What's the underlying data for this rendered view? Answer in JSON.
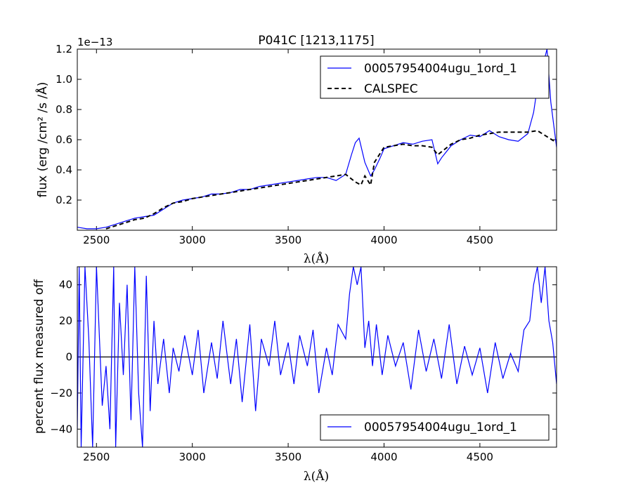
{
  "chart_data": [
    {
      "type": "line",
      "title": "P041C [1213,1175]",
      "xlabel": "λ(Å)",
      "ylabel": "flux (erg /cm² /s /Å)",
      "y_offset_label": "1e−13",
      "xlim": [
        2400,
        4900
      ],
      "ylim": [
        0.0,
        1.2
      ],
      "xticks": [
        2500,
        3000,
        3500,
        4000,
        4500
      ],
      "yticks": [
        0.2,
        0.4,
        0.6,
        0.8,
        1.0,
        1.2
      ],
      "ytick_labels": [
        "0.2",
        "0.4",
        "0.6",
        "0.8",
        "1.0",
        "1.2"
      ],
      "legend_position": "top-right",
      "series": [
        {
          "name": "00057954004ugu_1ord_1",
          "color": "#0000ff",
          "style": "solid",
          "x": [
            2400,
            2450,
            2500,
            2550,
            2600,
            2650,
            2700,
            2750,
            2800,
            2850,
            2900,
            2950,
            3000,
            3050,
            3100,
            3150,
            3200,
            3250,
            3300,
            3350,
            3400,
            3450,
            3500,
            3550,
            3600,
            3650,
            3700,
            3750,
            3800,
            3830,
            3850,
            3870,
            3900,
            3930,
            3950,
            3980,
            4000,
            4050,
            4100,
            4150,
            4200,
            4250,
            4280,
            4300,
            4350,
            4400,
            4450,
            4500,
            4550,
            4600,
            4650,
            4700,
            4750,
            4780,
            4800,
            4830,
            4850,
            4870,
            4900
          ],
          "y": [
            0.02,
            0.01,
            0.01,
            0.02,
            0.04,
            0.06,
            0.08,
            0.09,
            0.1,
            0.14,
            0.18,
            0.2,
            0.21,
            0.22,
            0.24,
            0.24,
            0.25,
            0.27,
            0.27,
            0.29,
            0.3,
            0.31,
            0.32,
            0.33,
            0.34,
            0.35,
            0.35,
            0.33,
            0.37,
            0.5,
            0.58,
            0.61,
            0.45,
            0.36,
            0.4,
            0.48,
            0.54,
            0.56,
            0.58,
            0.57,
            0.59,
            0.6,
            0.44,
            0.48,
            0.56,
            0.6,
            0.63,
            0.62,
            0.66,
            0.62,
            0.6,
            0.59,
            0.64,
            0.78,
            0.95,
            1.1,
            1.2,
            0.85,
            0.55
          ]
        },
        {
          "name": "CALSPEC",
          "color": "#000000",
          "style": "dashed",
          "x": [
            2550,
            2600,
            2650,
            2700,
            2750,
            2800,
            2850,
            2900,
            2950,
            3000,
            3050,
            3100,
            3150,
            3200,
            3250,
            3300,
            3350,
            3400,
            3450,
            3500,
            3550,
            3600,
            3650,
            3700,
            3750,
            3800,
            3850,
            3880,
            3900,
            3930,
            3950,
            4000,
            4050,
            4100,
            4150,
            4200,
            4250,
            4280,
            4300,
            4350,
            4400,
            4450,
            4500,
            4550,
            4600,
            4650,
            4700,
            4750,
            4800,
            4850,
            4900
          ],
          "y": [
            0.01,
            0.03,
            0.05,
            0.07,
            0.08,
            0.11,
            0.15,
            0.18,
            0.19,
            0.21,
            0.22,
            0.23,
            0.24,
            0.25,
            0.26,
            0.27,
            0.28,
            0.29,
            0.3,
            0.31,
            0.32,
            0.33,
            0.34,
            0.35,
            0.36,
            0.37,
            0.32,
            0.3,
            0.36,
            0.3,
            0.45,
            0.55,
            0.56,
            0.57,
            0.56,
            0.56,
            0.55,
            0.5,
            0.52,
            0.57,
            0.6,
            0.61,
            0.63,
            0.64,
            0.65,
            0.65,
            0.65,
            0.65,
            0.66,
            0.62,
            0.58
          ]
        }
      ]
    },
    {
      "type": "line",
      "title": "",
      "xlabel": "λ(Å)",
      "ylabel": "percent flux measured off",
      "xlim": [
        2400,
        4900
      ],
      "ylim": [
        -50,
        50
      ],
      "xticks": [
        2500,
        3000,
        3500,
        4000,
        4500
      ],
      "yticks": [
        -40,
        -20,
        0,
        20,
        40
      ],
      "ytick_labels": [
        "−40",
        "−20",
        "0",
        "20",
        "40"
      ],
      "reference_line": 0,
      "legend_position": "bottom-right",
      "series": [
        {
          "name": "00057954004ugu_1ord_1",
          "color": "#0000ff",
          "style": "solid",
          "x": [
            2400,
            2410,
            2420,
            2440,
            2460,
            2480,
            2500,
            2530,
            2550,
            2570,
            2590,
            2600,
            2620,
            2640,
            2660,
            2680,
            2700,
            2720,
            2740,
            2760,
            2780,
            2800,
            2820,
            2850,
            2880,
            2900,
            2930,
            2960,
            3000,
            3030,
            3060,
            3100,
            3130,
            3160,
            3200,
            3230,
            3260,
            3300,
            3330,
            3360,
            3400,
            3430,
            3460,
            3500,
            3530,
            3560,
            3600,
            3630,
            3660,
            3700,
            3730,
            3760,
            3800,
            3820,
            3840,
            3860,
            3880,
            3900,
            3920,
            3940,
            3960,
            3990,
            4020,
            4060,
            4100,
            4140,
            4180,
            4220,
            4260,
            4300,
            4340,
            4380,
            4420,
            4460,
            4500,
            4540,
            4580,
            4620,
            4660,
            4700,
            4730,
            4760,
            4780,
            4800,
            4820,
            4840,
            4860,
            4880,
            4900
          ],
          "y": [
            -40,
            50,
            -50,
            50,
            10,
            -50,
            50,
            -27,
            -5,
            -40,
            50,
            -50,
            30,
            -10,
            40,
            -35,
            50,
            -20,
            -50,
            45,
            -30,
            20,
            -15,
            10,
            -20,
            5,
            -8,
            12,
            -10,
            15,
            -20,
            8,
            -12,
            20,
            -15,
            10,
            -25,
            18,
            -30,
            10,
            -5,
            20,
            -10,
            8,
            -15,
            12,
            -5,
            15,
            -20,
            5,
            -10,
            18,
            10,
            35,
            50,
            40,
            50,
            5,
            20,
            -5,
            18,
            -10,
            12,
            -5,
            8,
            -18,
            15,
            -8,
            10,
            -12,
            18,
            -15,
            6,
            -10,
            5,
            -20,
            8,
            -12,
            2,
            -8,
            15,
            20,
            40,
            50,
            30,
            50,
            20,
            8,
            -15
          ]
        }
      ]
    }
  ]
}
